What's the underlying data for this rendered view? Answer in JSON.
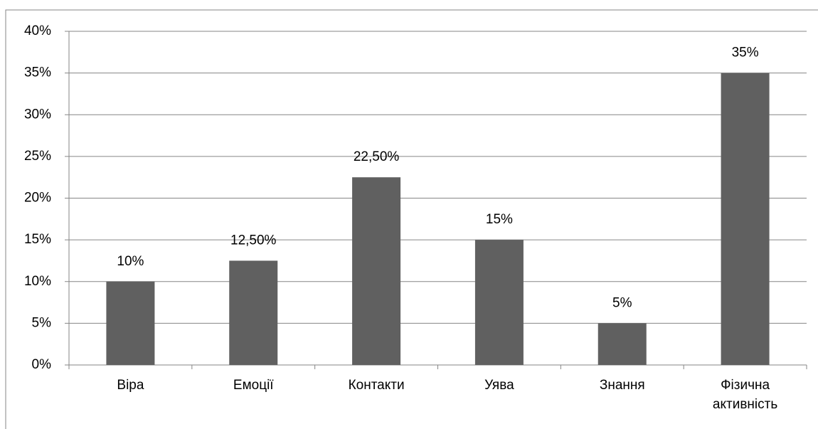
{
  "chart_data": {
    "type": "bar",
    "categories": [
      "Віра",
      "Емоції",
      "Контакти",
      "Уява",
      "Знання",
      "Фізична активність"
    ],
    "values": [
      10,
      12.5,
      22.5,
      15,
      5,
      35
    ],
    "value_labels": [
      "10%",
      "12,50%",
      "22,50%",
      "15%",
      "5%",
      "35%"
    ],
    "color": "#606060",
    "ylim": [
      0,
      40
    ],
    "yticks": [
      {
        "value": 0,
        "label": "0%"
      },
      {
        "value": 5,
        "label": "5%"
      },
      {
        "value": 10,
        "label": "10%"
      },
      {
        "value": 15,
        "label": "15%"
      },
      {
        "value": 20,
        "label": "20%"
      },
      {
        "value": 25,
        "label": "25%"
      },
      {
        "value": 30,
        "label": "30%"
      },
      {
        "value": 35,
        "label": "35%"
      },
      {
        "value": 40,
        "label": "40%"
      }
    ],
    "grid": true
  }
}
